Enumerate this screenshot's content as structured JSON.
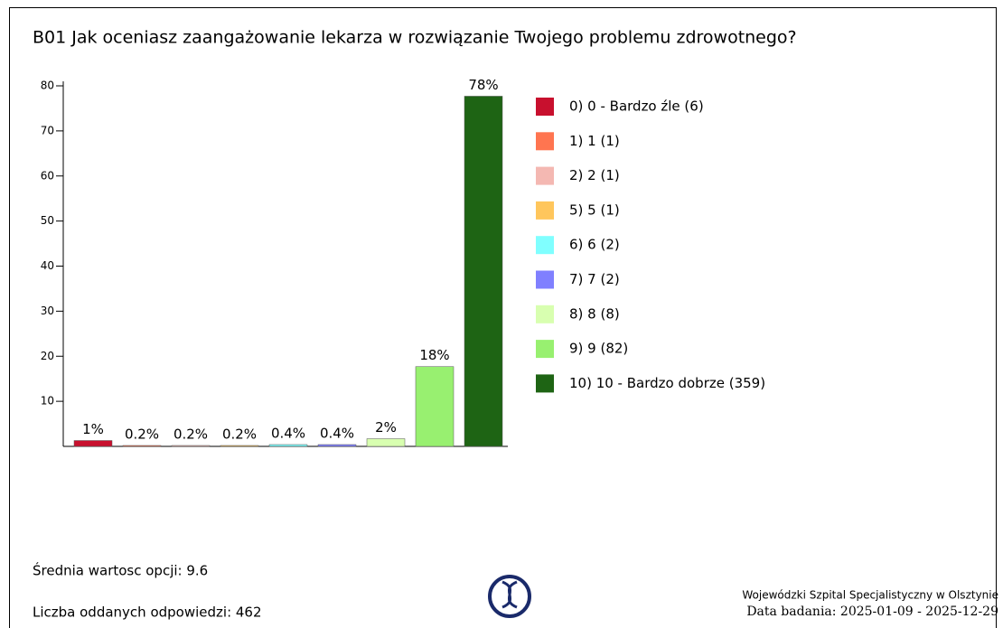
{
  "chart_data": {
    "type": "bar",
    "title": "B01 Jak oceniasz zaangażowanie lekarza w rozwiązanie Twojego problemu zdrowotnego?",
    "categories": [
      "0) 0 - Bardzo źle (6)",
      "1) 1 (1)",
      "2) 2 (1)",
      "5) 5 (1)",
      "6) 6 (2)",
      "7) 7 (2)",
      "8) 8 (8)",
      "9) 9 (82)",
      "10) 10 - Bardzo dobrze (359)"
    ],
    "values": [
      1.3,
      0.2,
      0.2,
      0.2,
      0.4,
      0.4,
      1.7,
      17.7,
      77.7
    ],
    "value_labels": [
      "1%",
      "0.2%",
      "0.2%",
      "0.2%",
      "0.4%",
      "0.4%",
      "2%",
      "18%",
      "78%"
    ],
    "colors": [
      "#c8102e",
      "#ff7550",
      "#f4b8b2",
      "#ffc65c",
      "#80ffff",
      "#8080ff",
      "#d8ffb0",
      "#98f070",
      "#1e6414"
    ],
    "ylim": [
      0,
      80
    ],
    "yticks": [
      10,
      20,
      30,
      40,
      50,
      60,
      70,
      80
    ],
    "legend": "right"
  },
  "footer": {
    "mean": "Średnia wartosc opcji: 9.6",
    "count": "Liczba oddanych odpowiedzi: 462",
    "hospital": "Wojewódzki Szpital Specjalistyczny w Olsztynie",
    "date": "Data badania: 2025-01-09 - 2025-12-29"
  }
}
